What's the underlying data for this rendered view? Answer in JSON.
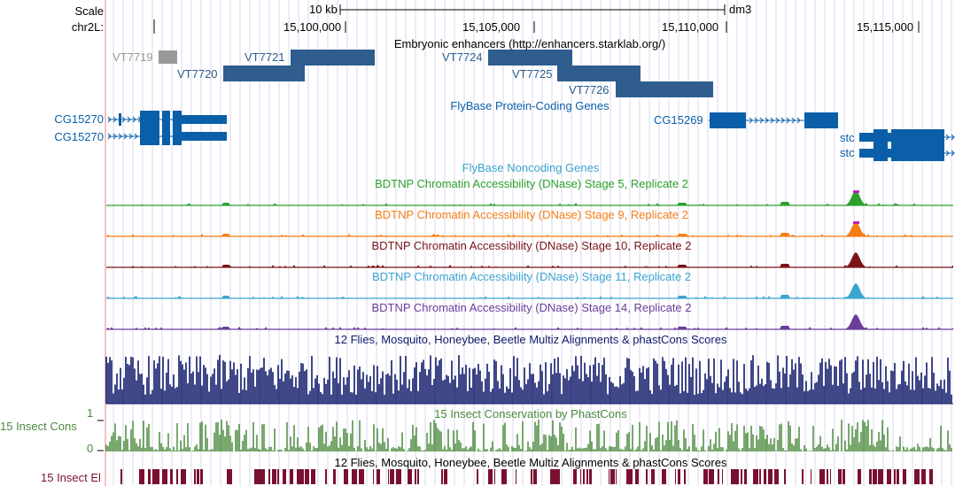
{
  "ruler": {
    "scale_label": "Scale",
    "chrom_label": "chr2L:",
    "scale_text": "10 kb",
    "assembly": "dm3",
    "ticks": [
      "15,100,000",
      "15,105,000",
      "15,110,000",
      "15,115,000"
    ]
  },
  "enhancers": {
    "title": "Embryonic enhancers (http://enhancers.starklab.org/)",
    "items": [
      "VT7719",
      "VT7720",
      "VT7721",
      "VT7724",
      "VT7725",
      "VT7726"
    ]
  },
  "genes": {
    "title": "FlyBase Protein-Coding Genes",
    "items": [
      "CG15270",
      "CG15270",
      "CG15269",
      "stc",
      "stc"
    ]
  },
  "noncoding": {
    "title": "FlyBase Noncoding Genes"
  },
  "dnase": [
    {
      "title": "BDTNP Chromatin Accessibility (DNase) Stage 5, Replicate 2",
      "color": "#2ca02c"
    },
    {
      "title": "BDTNP Chromatin Accessibility (DNase) Stage 9, Replicate 2",
      "color": "#f57f17"
    },
    {
      "title": "BDTNP Chromatin Accessibility (DNase) Stage 10, Replicate 2",
      "color": "#7b1416"
    },
    {
      "title": "BDTNP Chromatin Accessibility (DNase) Stage 11, Replicate 2",
      "color": "#3ba4d0"
    },
    {
      "title": "BDTNP Chromatin Accessibility (DNase) Stage 14, Replicate 2",
      "color": "#6a3d9a"
    }
  ],
  "multiz": {
    "title": "12 Flies, Mosquito, Honeybee, Beetle Multiz Alignments & phastCons Scores",
    "color": "#101a6a"
  },
  "cons": {
    "title": "15 Insect Conservation by PhastCons",
    "side_label": "15 Insect Cons",
    "y_max": "1",
    "y_min": "0",
    "color": "#4a8a3c"
  },
  "elements": {
    "title": "12 Flies, Mosquito, Honeybee, Beetle Multiz Alignments & phastCons Scores",
    "side_label": "15 Insect El",
    "color": "#7a1030"
  },
  "colors": {
    "gene_blue": "#0a5fa8",
    "enhancer_blue": "#2e5d8e",
    "enhancer_gray": "#999999",
    "grid": "#d8d8f0",
    "left_edge": "#f08080"
  }
}
